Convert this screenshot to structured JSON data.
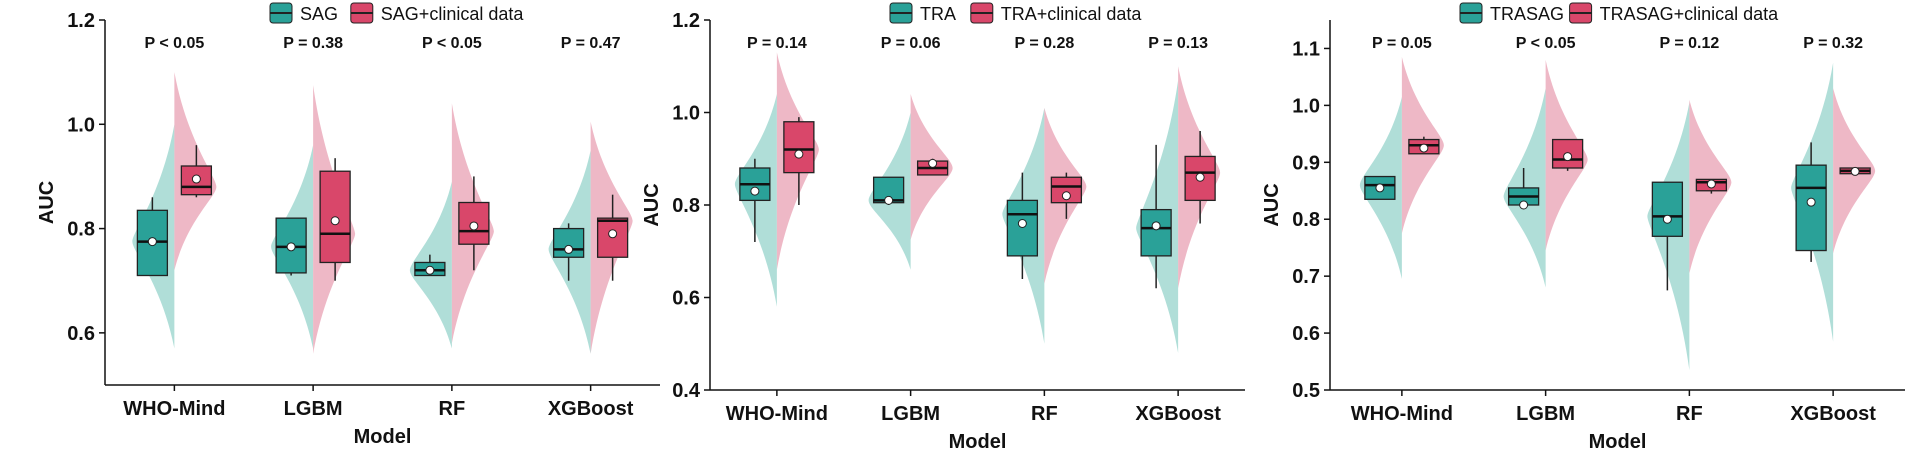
{
  "colors": {
    "teal": "#2aa198",
    "teal_light": "#8fd0c8",
    "red": "#d9476a",
    "red_light": "#e79aae",
    "axis": "#111111"
  },
  "chart_data": [
    {
      "type": "raincloud-boxplot",
      "ylabel": "AUC",
      "xlabel": "Model",
      "ylim": [
        0.5,
        1.2
      ],
      "yticks": [
        "0.6",
        "0.8",
        "1.0",
        "1.2"
      ],
      "categories": [
        "WHO-Mind",
        "LGBM",
        "RF",
        "XGBoost"
      ],
      "pvalues": [
        "P < 0.05",
        "P = 0.38",
        "P < 0.05",
        "P = 0.47"
      ],
      "series": [
        {
          "name": "SAG",
          "color": "#2aa198",
          "boxes": [
            {
              "min": 0.71,
              "q1": 0.71,
              "median": 0.775,
              "q3": 0.835,
              "max": 0.86,
              "mean": 0.775
            },
            {
              "min": 0.71,
              "q1": 0.715,
              "median": 0.765,
              "q3": 0.82,
              "max": 0.82,
              "mean": 0.765
            },
            {
              "min": 0.71,
              "q1": 0.71,
              "median": 0.72,
              "q3": 0.735,
              "max": 0.75,
              "mean": 0.72
            },
            {
              "min": 0.7,
              "q1": 0.745,
              "median": 0.76,
              "q3": 0.8,
              "max": 0.81,
              "mean": 0.76
            }
          ]
        },
        {
          "name": "SAG+clinical data",
          "color": "#d9476a",
          "boxes": [
            {
              "min": 0.86,
              "q1": 0.865,
              "median": 0.88,
              "q3": 0.92,
              "max": 0.96,
              "mean": 0.895
            },
            {
              "min": 0.7,
              "q1": 0.735,
              "median": 0.79,
              "q3": 0.91,
              "max": 0.935,
              "mean": 0.815
            },
            {
              "min": 0.72,
              "q1": 0.77,
              "median": 0.795,
              "q3": 0.85,
              "max": 0.9,
              "mean": 0.805
            },
            {
              "min": 0.7,
              "q1": 0.745,
              "median": 0.815,
              "q3": 0.82,
              "max": 0.865,
              "mean": 0.79
            }
          ]
        }
      ]
    },
    {
      "type": "raincloud-boxplot",
      "ylabel": "AUC",
      "xlabel": "Model",
      "ylim": [
        0.4,
        1.2
      ],
      "yticks": [
        "0.4",
        "0.6",
        "0.8",
        "1.0",
        "1.2"
      ],
      "categories": [
        "WHO-Mind",
        "LGBM",
        "RF",
        "XGBoost"
      ],
      "pvalues": [
        "P = 0.14",
        "P = 0.06",
        "P = 0.28",
        "P = 0.13"
      ],
      "series": [
        {
          "name": "TRA",
          "color": "#2aa198",
          "boxes": [
            {
              "min": 0.72,
              "q1": 0.81,
              "median": 0.845,
              "q3": 0.88,
              "max": 0.9,
              "mean": 0.83
            },
            {
              "min": 0.8,
              "q1": 0.805,
              "median": 0.81,
              "q3": 0.86,
              "max": 0.86,
              "mean": 0.81
            },
            {
              "min": 0.64,
              "q1": 0.69,
              "median": 0.78,
              "q3": 0.81,
              "max": 0.87,
              "mean": 0.76
            },
            {
              "min": 0.62,
              "q1": 0.69,
              "median": 0.75,
              "q3": 0.79,
              "max": 0.93,
              "mean": 0.755
            }
          ]
        },
        {
          "name": "TRA+clinical data",
          "color": "#d9476a",
          "boxes": [
            {
              "min": 0.8,
              "q1": 0.87,
              "median": 0.92,
              "q3": 0.98,
              "max": 0.99,
              "mean": 0.91
            },
            {
              "min": 0.865,
              "q1": 0.865,
              "median": 0.88,
              "q3": 0.895,
              "max": 0.9,
              "mean": 0.89
            },
            {
              "min": 0.77,
              "q1": 0.805,
              "median": 0.84,
              "q3": 0.86,
              "max": 0.87,
              "mean": 0.82
            },
            {
              "min": 0.76,
              "q1": 0.81,
              "median": 0.87,
              "q3": 0.905,
              "max": 0.96,
              "mean": 0.86
            }
          ]
        }
      ]
    },
    {
      "type": "raincloud-boxplot",
      "ylabel": "AUC",
      "xlabel": "Model",
      "ylim": [
        0.5,
        1.15
      ],
      "yticks": [
        "0.5",
        "0.6",
        "0.7",
        "0.8",
        "0.9",
        "1.0",
        "1.1"
      ],
      "categories": [
        "WHO-Mind",
        "LGBM",
        "RF",
        "XGBoost"
      ],
      "pvalues": [
        "P = 0.05",
        "P < 0.05",
        "P = 0.12",
        "P = 0.32"
      ],
      "series": [
        {
          "name": "TRASAG",
          "color": "#2aa198",
          "boxes": [
            {
              "min": 0.835,
              "q1": 0.835,
              "median": 0.86,
              "q3": 0.875,
              "max": 0.875,
              "mean": 0.855
            },
            {
              "min": 0.82,
              "q1": 0.825,
              "median": 0.84,
              "q3": 0.855,
              "max": 0.89,
              "mean": 0.825
            },
            {
              "min": 0.675,
              "q1": 0.77,
              "median": 0.805,
              "q3": 0.865,
              "max": 0.865,
              "mean": 0.8
            },
            {
              "min": 0.725,
              "q1": 0.745,
              "median": 0.855,
              "q3": 0.895,
              "max": 0.935,
              "mean": 0.83
            }
          ]
        },
        {
          "name": "TRASAG+clinical data",
          "color": "#d9476a",
          "boxes": [
            {
              "min": 0.915,
              "q1": 0.915,
              "median": 0.93,
              "q3": 0.94,
              "max": 0.945,
              "mean": 0.925
            },
            {
              "min": 0.885,
              "q1": 0.89,
              "median": 0.905,
              "q3": 0.94,
              "max": 0.94,
              "mean": 0.91
            },
            {
              "min": 0.845,
              "q1": 0.85,
              "median": 0.865,
              "q3": 0.87,
              "max": 0.87,
              "mean": 0.862
            },
            {
              "min": 0.88,
              "q1": 0.88,
              "median": 0.885,
              "q3": 0.89,
              "max": 0.89,
              "mean": 0.884
            }
          ]
        }
      ]
    }
  ]
}
